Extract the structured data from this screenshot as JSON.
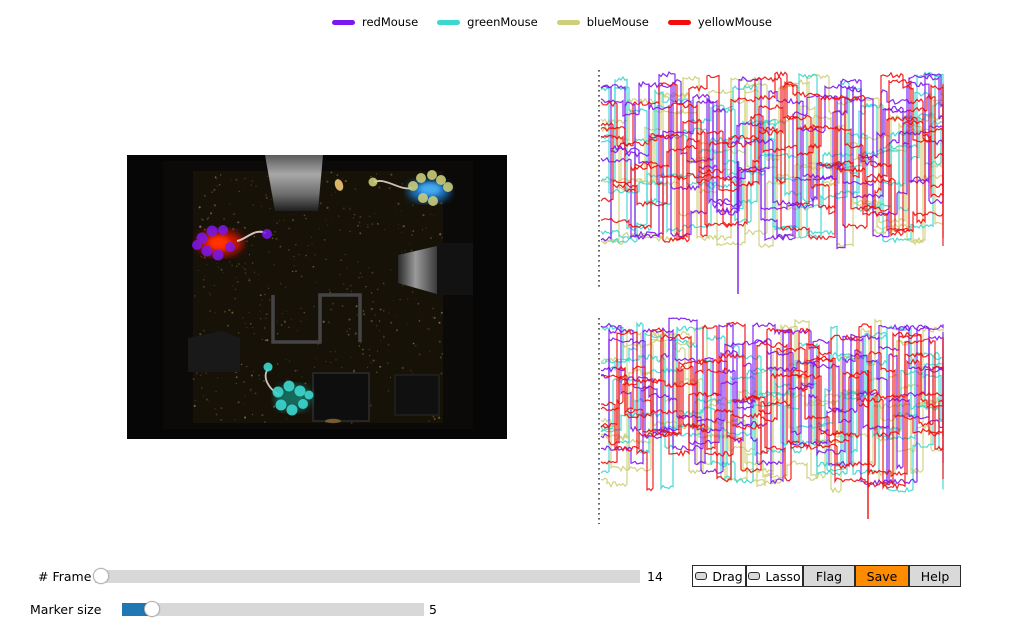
{
  "legend": {
    "items": [
      {
        "label": "redMouse",
        "color": "#7d17ef"
      },
      {
        "label": "greenMouse",
        "color": "#3cd7d0"
      },
      {
        "label": "blueMouse",
        "color": "#cdcf7a"
      },
      {
        "label": "yellowMouse",
        "color": "#f10d0d"
      }
    ]
  },
  "video": {
    "description": "top-down video frame of dark arena with tracked mice",
    "mice": [
      {
        "name": "redMouse",
        "marker_color": "#7d17ef",
        "body_glow": "#e81600"
      },
      {
        "name": "greenMouse",
        "marker_color": "#3cd7d0",
        "body_glow": "#12b2a0"
      },
      {
        "name": "blueMouse",
        "marker_color": "#cdcf7a",
        "body_glow": "#1b7fd6"
      }
    ]
  },
  "plots": {
    "type": "line",
    "panels": [
      {
        "name": "trace-panel-top"
      },
      {
        "name": "trace-panel-bottom"
      }
    ],
    "series": [
      {
        "name": "redMouse",
        "color": "#7d17ef"
      },
      {
        "name": "greenMouse",
        "color": "#3cd7d0"
      },
      {
        "name": "blueMouse",
        "color": "#cdcf7a"
      },
      {
        "name": "yellowMouse",
        "color": "#f10d0d"
      }
    ],
    "frame_cursor": {
      "style": "dotted",
      "color": "#000000",
      "position": "left-edge"
    }
  },
  "controls": {
    "frame_slider": {
      "label": "# Frame",
      "value": "14"
    },
    "marker_slider": {
      "label": "Marker size",
      "value": "5",
      "fill_color": "#1f77b4"
    },
    "buttons": {
      "drag": {
        "label": "Drag"
      },
      "lasso": {
        "label": "Lasso"
      },
      "flag": {
        "label": "Flag"
      },
      "save": {
        "label": "Save",
        "color": "#ff8c00"
      },
      "help": {
        "label": "Help"
      }
    }
  }
}
